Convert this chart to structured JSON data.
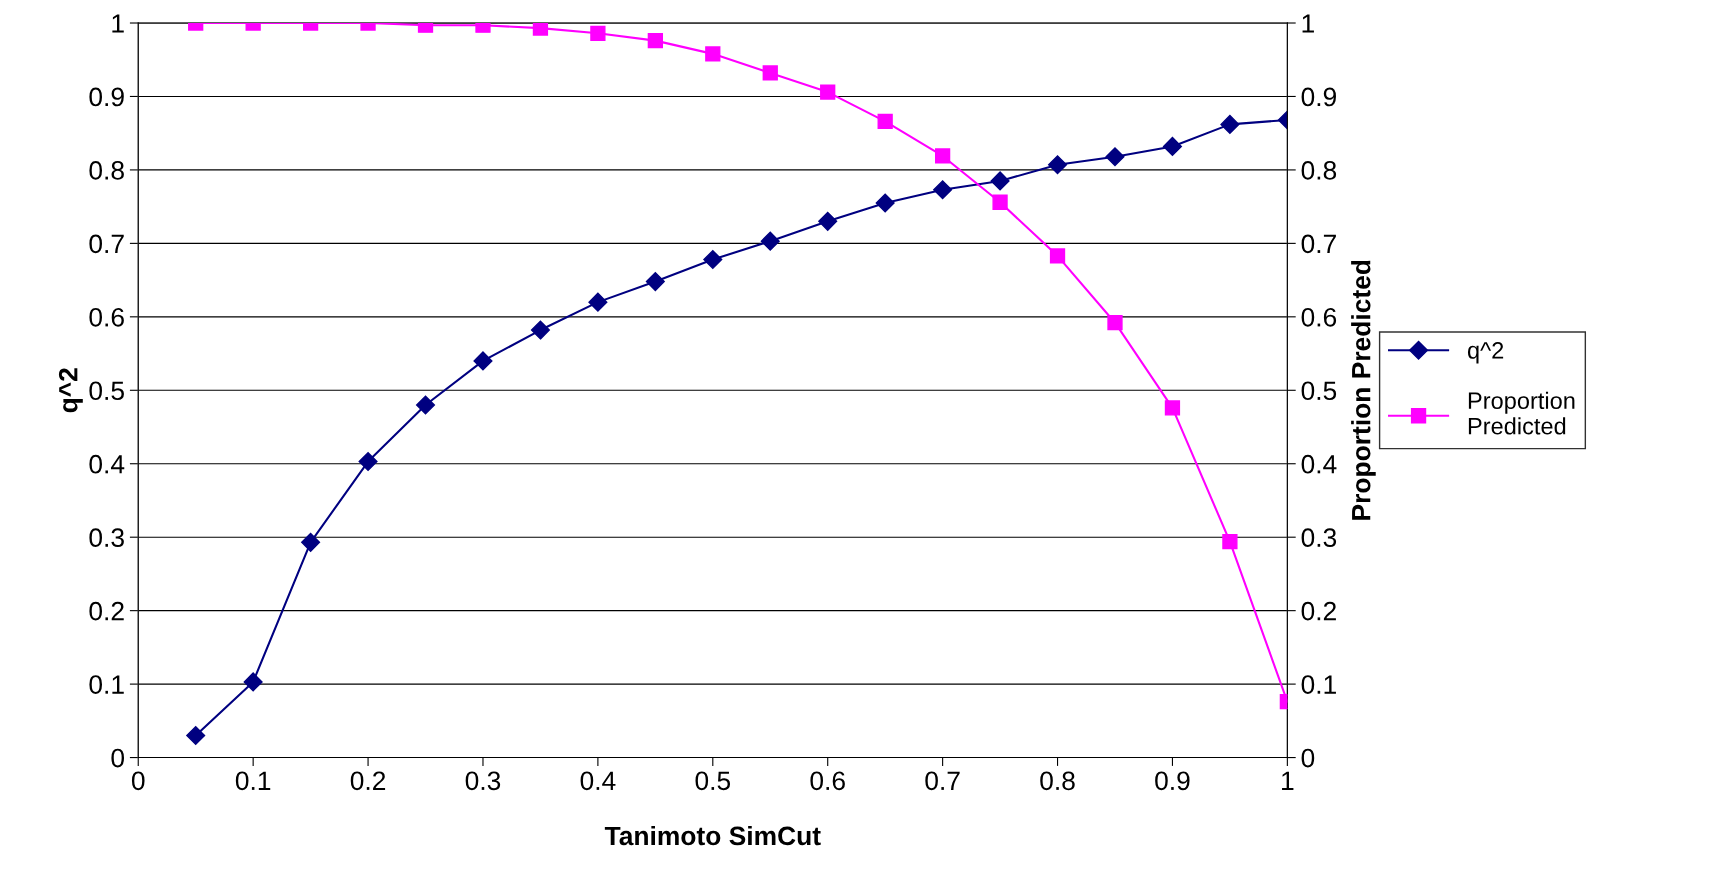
{
  "chart_data": {
    "type": "line",
    "xlabel": "Tanimoto SimCut",
    "ylabel": "q^2",
    "y2label": "Proportion Predicted",
    "x": [
      0.05,
      0.1,
      0.15,
      0.2,
      0.25,
      0.3,
      0.35,
      0.4,
      0.45,
      0.5,
      0.55,
      0.6,
      0.65,
      0.7,
      0.75,
      0.8,
      0.85,
      0.9,
      0.95,
      1.0
    ],
    "series": [
      {
        "name": "q^2",
        "color": "#000080",
        "marker": "diamond",
        "values": [
          0.03,
          0.103,
          0.293,
          0.403,
          0.48,
          0.54,
          0.582,
          0.62,
          0.648,
          0.678,
          0.703,
          0.73,
          0.755,
          0.773,
          0.785,
          0.807,
          0.818,
          0.832,
          0.862,
          0.868
        ]
      },
      {
        "name": "Proportion Predicted",
        "color": "#ff00ff",
        "marker": "square",
        "axis": "y2",
        "values": [
          1.0,
          1.0,
          1.0,
          1.0,
          0.997,
          0.997,
          0.993,
          0.986,
          0.976,
          0.958,
          0.932,
          0.906,
          0.866,
          0.819,
          0.756,
          0.683,
          0.592,
          0.476,
          0.294,
          0.076
        ]
      }
    ],
    "xlim": [
      0,
      1
    ],
    "xticks": [
      0,
      0.1,
      0.2,
      0.3,
      0.4,
      0.5,
      0.6,
      0.7,
      0.8,
      0.9,
      1
    ],
    "ylim": [
      0,
      1
    ],
    "yticks": [
      0,
      0.1,
      0.2,
      0.3,
      0.4,
      0.5,
      0.6,
      0.7,
      0.8,
      0.9,
      1
    ],
    "y2lim": [
      0,
      1
    ],
    "y2ticks": [
      0,
      0.1,
      0.2,
      0.3,
      0.4,
      0.5,
      0.6,
      0.7,
      0.8,
      0.9,
      1
    ],
    "grid": "y",
    "legend": "right",
    "line_style": "solid"
  }
}
